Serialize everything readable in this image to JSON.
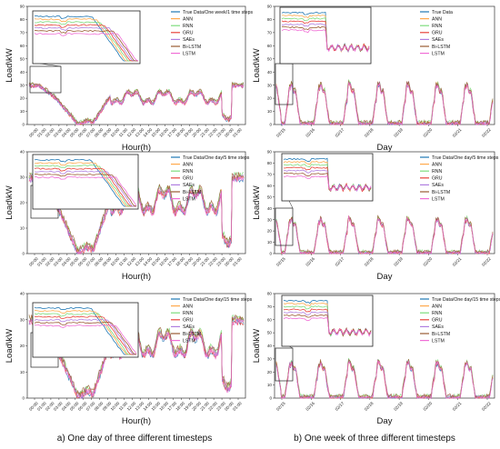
{
  "captions": {
    "left": "a) One day of three different timesteps",
    "right": "b) One week of three different timesteps"
  },
  "palette": {
    "True Data": "#1f77b4",
    "ANN": "#ffa94d",
    "RNN": "#7ddc7d",
    "GRU": "#e8423a",
    "SAEs": "#b07fe0",
    "Bi-LSTM": "#9a5b32",
    "LSTM": "#f06ed6"
  },
  "chart_data": [
    {
      "type": "line",
      "xlabel": "Hour(h)",
      "ylabel": "Load\\kW",
      "ylim": [
        0,
        90
      ],
      "yticks": [
        0,
        10,
        20,
        30,
        40,
        50,
        60,
        70,
        80,
        90
      ],
      "x_ticks": [
        "00:00",
        "01:00",
        "02:00",
        "03:00",
        "04:00",
        "05:00",
        "06:00",
        "07:00",
        "08:00",
        "09:00",
        "10:00",
        "11:00",
        "12:00",
        "13:00",
        "14:00",
        "15:00",
        "16:00",
        "17:00",
        "18:00",
        "19:00",
        "20:00",
        "21:00",
        "22:00",
        "23:00",
        "00:00",
        "01:00"
      ],
      "legend": [
        "True Data/One week/1 time steps",
        "ANN",
        "RNN",
        "GRU",
        "SAEs",
        "Bi-LSTM",
        "LSTM"
      ],
      "series": [
        {
          "name": "True Data/One week/1 time steps"
        },
        {
          "name": "ANN"
        },
        {
          "name": "RNN"
        },
        {
          "name": "GRU"
        },
        {
          "name": "SAEs"
        },
        {
          "name": "Bi-LSTM"
        },
        {
          "name": "LSTM"
        }
      ]
    },
    {
      "type": "line",
      "xlabel": "Day",
      "ylabel": "Load\\kW",
      "ylim": [
        0,
        90
      ],
      "yticks": [
        0,
        10,
        20,
        30,
        40,
        50,
        60,
        70,
        80,
        90
      ],
      "x_ticks": [
        "02/15",
        "02/16",
        "02/17",
        "02/18",
        "02/19",
        "02/20",
        "02/21",
        "02/22"
      ],
      "legend": [
        "True Data",
        "ANN",
        "RNN",
        "GRU",
        "SAEs",
        "Bi-LSTM",
        "LSTM"
      ],
      "series": [
        {
          "name": "True Data"
        },
        {
          "name": "ANN"
        },
        {
          "name": "RNN"
        },
        {
          "name": "GRU"
        },
        {
          "name": "SAEs"
        },
        {
          "name": "Bi-LSTM"
        },
        {
          "name": "LSTM"
        }
      ]
    },
    {
      "type": "line",
      "xlabel": "Hour(h)",
      "ylabel": "Load\\kW",
      "ylim": [
        0,
        40
      ],
      "yticks": [
        0,
        10,
        20,
        30,
        40
      ],
      "x_ticks": [
        "00:00",
        "01:00",
        "02:00",
        "03:00",
        "04:00",
        "05:00",
        "06:00",
        "07:00",
        "08:00",
        "09:00",
        "10:00",
        "11:00",
        "12:00",
        "13:00",
        "14:00",
        "15:00",
        "16:00",
        "17:00",
        "18:00",
        "19:00",
        "20:00",
        "21:00",
        "22:00",
        "23:00",
        "00:00",
        "01:00"
      ],
      "legend": [
        "True Data/One day/5 time steps",
        "ANN",
        "RNN",
        "GRU",
        "SAEs",
        "Bi-LSTM",
        "LSTM"
      ],
      "series": [
        {
          "name": "True Data/One day/5 time steps"
        },
        {
          "name": "ANN"
        },
        {
          "name": "RNN"
        },
        {
          "name": "GRU"
        },
        {
          "name": "SAEs"
        },
        {
          "name": "Bi-LSTM"
        },
        {
          "name": "LSTM"
        }
      ]
    },
    {
      "type": "line",
      "xlabel": "Day",
      "ylabel": "Load\\kW",
      "ylim": [
        0,
        90
      ],
      "yticks": [
        0,
        10,
        20,
        30,
        40,
        50,
        60,
        70,
        80,
        90
      ],
      "x_ticks": [
        "02/15",
        "02/16",
        "02/17",
        "02/18",
        "02/19",
        "02/20",
        "02/21",
        "02/22"
      ],
      "legend": [
        "True Data/One day/5 time steps",
        "ANN",
        "RNN",
        "GRU",
        "SAEs",
        "Bi-LSTM",
        "LSTM"
      ],
      "series": [
        {
          "name": "True Data/One day/5 time steps"
        },
        {
          "name": "ANN"
        },
        {
          "name": "RNN"
        },
        {
          "name": "GRU"
        },
        {
          "name": "SAEs"
        },
        {
          "name": "Bi-LSTM"
        },
        {
          "name": "LSTM"
        }
      ]
    },
    {
      "type": "line",
      "xlabel": "Hour(h)",
      "ylabel": "Load\\kW",
      "ylim": [
        0,
        40
      ],
      "yticks": [
        0,
        10,
        20,
        30,
        40
      ],
      "x_ticks": [
        "00:00",
        "01:00",
        "02:00",
        "03:00",
        "04:00",
        "05:00",
        "06:00",
        "07:00",
        "08:00",
        "09:00",
        "10:00",
        "11:00",
        "12:00",
        "13:00",
        "14:00",
        "15:00",
        "16:00",
        "17:00",
        "18:00",
        "19:00",
        "20:00",
        "21:00",
        "22:00",
        "23:00",
        "00:00",
        "01:00"
      ],
      "legend": [
        "True Data/One day/15 time steps",
        "ANN",
        "RNN",
        "GRU",
        "SAEs",
        "Bi-LSTM",
        "LSTM"
      ],
      "series": [
        {
          "name": "True Data/One day/15 time steps"
        },
        {
          "name": "ANN"
        },
        {
          "name": "RNN"
        },
        {
          "name": "GRU"
        },
        {
          "name": "SAEs"
        },
        {
          "name": "Bi-LSTM"
        },
        {
          "name": "LSTM"
        }
      ]
    },
    {
      "type": "line",
      "xlabel": "Day",
      "ylabel": "Load\\kW",
      "ylim": [
        0,
        80
      ],
      "yticks": [
        0,
        10,
        20,
        30,
        40,
        50,
        60,
        70,
        80
      ],
      "x_ticks": [
        "02/15",
        "02/16",
        "02/17",
        "02/18",
        "02/19",
        "02/20",
        "02/21",
        "02/22"
      ],
      "legend": [
        "True Data/One day/15 time steps",
        "ANN",
        "RNN",
        "GRU",
        "SAEs",
        "Bi-LSTM",
        "LSTM"
      ],
      "series": [
        {
          "name": "True Data/One day/15 time steps"
        },
        {
          "name": "ANN"
        },
        {
          "name": "RNN"
        },
        {
          "name": "GRU"
        },
        {
          "name": "SAEs"
        },
        {
          "name": "Bi-LSTM"
        },
        {
          "name": "LSTM"
        }
      ]
    }
  ]
}
